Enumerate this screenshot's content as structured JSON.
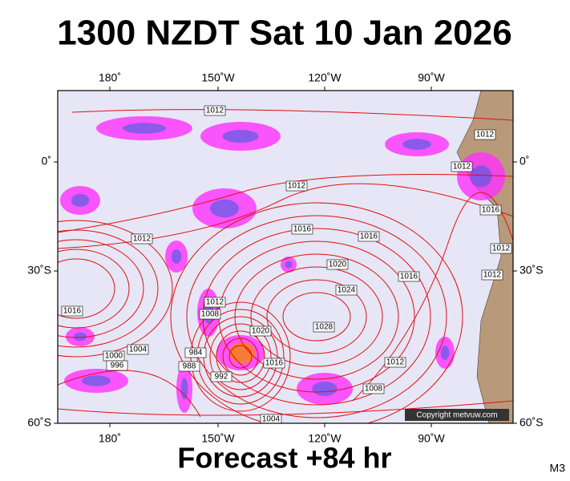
{
  "header": {
    "title": "1300 NZDT Sat 10 Jan 2026"
  },
  "map": {
    "lon_labels": [
      "180˚",
      "150˚W",
      "120˚W",
      "90˚W"
    ],
    "lat_labels": [
      "0˚",
      "30˚S",
      "60˚S"
    ],
    "isobar_labels": [
      "1012",
      "1012",
      "1012",
      "1016",
      "1012",
      "1016",
      "1016",
      "1012",
      "1020",
      "1012",
      "1012",
      "1016",
      "1024",
      "1016",
      "1012",
      "1008",
      "1028",
      "1020",
      "1004",
      "1000",
      "996",
      "984",
      "1016",
      "988",
      "992",
      "1012",
      "1008",
      "1004"
    ],
    "copyright": "Copyright metvuw.com"
  },
  "footer": {
    "forecast": "Forecast +84 hr",
    "code": "M3"
  }
}
